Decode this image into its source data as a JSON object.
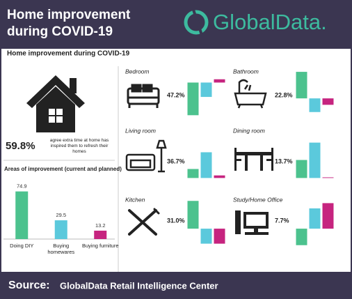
{
  "header": {
    "title": "Home improvement during COVID-19",
    "brand": "GlobalData."
  },
  "subtitle": "Home improvement during COVID-19",
  "stat": {
    "value": "59.8%",
    "text": "agree extra time at home has inspired them to refresh their homes"
  },
  "chart_data": [
    {
      "type": "bar",
      "title": "Areas of improvement (current and planned)",
      "categories": [
        "Doing DIY",
        "Buying homewares",
        "Buying furniture"
      ],
      "values": [
        74.9,
        29.5,
        13.2
      ],
      "colors": [
        "#4cc28e",
        "#5bc9dc",
        "#c6247f"
      ],
      "ylim": [
        0,
        80
      ]
    },
    {
      "type": "bar",
      "title": "Bedroom",
      "annotation": "47.2%",
      "values": [
        -50,
        -22,
        5
      ],
      "colors": [
        "#4cc28e",
        "#5bc9dc",
        "#c6247f"
      ],
      "ylim": [
        -55,
        25
      ]
    },
    {
      "type": "bar",
      "title": "Bathroom",
      "annotation": "22.8%",
      "values": [
        33,
        -17,
        -8
      ],
      "colors": [
        "#4cc28e",
        "#5bc9dc",
        "#c6247f"
      ],
      "ylim": [
        -25,
        40
      ]
    },
    {
      "type": "bar",
      "title": "Living room",
      "annotation": "36.7%",
      "values": [
        14,
        40,
        4
      ],
      "colors": [
        "#4cc28e",
        "#5bc9dc",
        "#c6247f"
      ],
      "ylim": [
        -5,
        60
      ]
    },
    {
      "type": "bar",
      "title": "Dining room",
      "annotation": "13.7%",
      "values": [
        28,
        55,
        1
      ],
      "colors": [
        "#4cc28e",
        "#5bc9dc",
        "#c6247f"
      ],
      "ylim": [
        -5,
        60
      ]
    },
    {
      "type": "bar",
      "title": "Kitchen",
      "annotation": "31.0%",
      "values": [
        37,
        -20,
        -20
      ],
      "colors": [
        "#4cc28e",
        "#5bc9dc",
        "#c6247f"
      ],
      "ylim": [
        -25,
        40
      ]
    },
    {
      "type": "bar",
      "title": "Study/Home Office",
      "annotation": "7.7%",
      "values": [
        -22,
        27,
        34
      ],
      "colors": [
        "#4cc28e",
        "#5bc9dc",
        "#c6247f"
      ],
      "ylim": [
        -25,
        40
      ]
    }
  ],
  "footer": {
    "label": "Source:",
    "text": "GlobalData Retail Intelligence Center"
  }
}
